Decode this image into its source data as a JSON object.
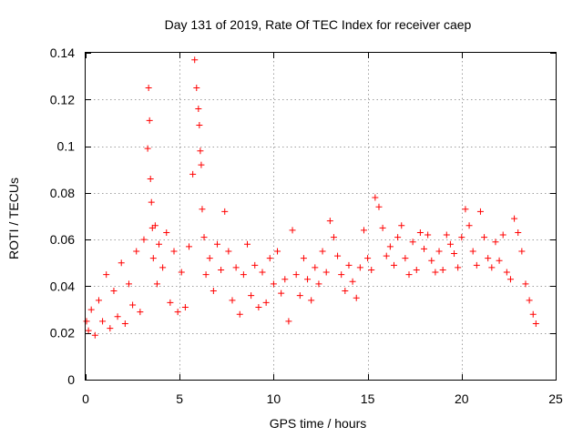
{
  "chart_data": {
    "type": "scatter",
    "title": "Day 131 of 2019, Rate Of TEC Index for receiver caep",
    "xlabel": "GPS time / hours",
    "ylabel": "ROTI / TECUs",
    "xlim": [
      0,
      25
    ],
    "ylim": [
      0,
      0.14
    ],
    "xticks": [
      0,
      5,
      10,
      15,
      20,
      25
    ],
    "xtick_labels": [
      "0",
      "5",
      "10",
      "15",
      "20",
      "25"
    ],
    "yticks": [
      0,
      0.02,
      0.04,
      0.06,
      0.08,
      0.1,
      0.12,
      0.14
    ],
    "ytick_labels": [
      "0",
      "0.02",
      "0.04",
      "0.06",
      "0.08",
      "0.1",
      "0.12",
      "0.14"
    ],
    "grid": true,
    "marker": "+",
    "marker_color": "#ff0000",
    "series": [
      {
        "name": "ROTI",
        "x": [
          0.05,
          0.15,
          0.3,
          0.5,
          0.7,
          0.9,
          1.1,
          1.3,
          1.5,
          1.7,
          1.9,
          2.1,
          2.3,
          2.5,
          2.7,
          2.9,
          3.1,
          3.3,
          3.35,
          3.4,
          3.45,
          3.5,
          3.55,
          3.6,
          3.7,
          3.8,
          3.9,
          4.1,
          4.3,
          4.5,
          4.7,
          4.9,
          5.1,
          5.3,
          5.5,
          5.7,
          5.8,
          5.9,
          6.0,
          6.05,
          6.1,
          6.15,
          6.2,
          6.3,
          6.4,
          6.6,
          6.8,
          7.0,
          7.2,
          7.4,
          7.6,
          7.8,
          8.0,
          8.2,
          8.4,
          8.6,
          8.8,
          9.0,
          9.2,
          9.4,
          9.6,
          9.8,
          10.0,
          10.2,
          10.4,
          10.6,
          10.8,
          11.0,
          11.2,
          11.4,
          11.6,
          11.8,
          12.0,
          12.2,
          12.4,
          12.6,
          12.8,
          13.0,
          13.2,
          13.4,
          13.6,
          13.8,
          14.0,
          14.2,
          14.4,
          14.6,
          14.8,
          15.0,
          15.2,
          15.4,
          15.6,
          15.8,
          16.0,
          16.2,
          16.4,
          16.6,
          16.8,
          17.0,
          17.2,
          17.4,
          17.6,
          17.8,
          18.0,
          18.2,
          18.4,
          18.6,
          18.8,
          19.0,
          19.2,
          19.4,
          19.6,
          19.8,
          20.0,
          20.2,
          20.4,
          20.6,
          20.8,
          21.0,
          21.2,
          21.4,
          21.6,
          21.8,
          22.0,
          22.2,
          22.4,
          22.6,
          22.8,
          23.0,
          23.2,
          23.4,
          23.6,
          23.8,
          23.95
        ],
        "y": [
          0.025,
          0.021,
          0.03,
          0.019,
          0.034,
          0.025,
          0.045,
          0.022,
          0.038,
          0.027,
          0.05,
          0.024,
          0.041,
          0.032,
          0.055,
          0.029,
          0.06,
          0.099,
          0.125,
          0.111,
          0.086,
          0.076,
          0.065,
          0.052,
          0.066,
          0.041,
          0.058,
          0.048,
          0.063,
          0.033,
          0.055,
          0.029,
          0.046,
          0.031,
          0.057,
          0.088,
          0.137,
          0.125,
          0.116,
          0.109,
          0.098,
          0.092,
          0.073,
          0.061,
          0.045,
          0.052,
          0.038,
          0.058,
          0.047,
          0.072,
          0.055,
          0.034,
          0.048,
          0.028,
          0.045,
          0.058,
          0.036,
          0.049,
          0.031,
          0.046,
          0.033,
          0.052,
          0.041,
          0.055,
          0.037,
          0.043,
          0.025,
          0.064,
          0.045,
          0.036,
          0.052,
          0.043,
          0.034,
          0.048,
          0.041,
          0.055,
          0.046,
          0.068,
          0.061,
          0.053,
          0.045,
          0.038,
          0.049,
          0.042,
          0.035,
          0.048,
          0.064,
          0.052,
          0.047,
          0.078,
          0.074,
          0.065,
          0.053,
          0.057,
          0.049,
          0.061,
          0.066,
          0.052,
          0.045,
          0.059,
          0.047,
          0.063,
          0.056,
          0.062,
          0.051,
          0.046,
          0.055,
          0.047,
          0.062,
          0.058,
          0.054,
          0.048,
          0.061,
          0.073,
          0.066,
          0.055,
          0.049,
          0.072,
          0.061,
          0.052,
          0.048,
          0.059,
          0.051,
          0.062,
          0.046,
          0.043,
          0.069,
          0.063,
          0.055,
          0.041,
          0.034,
          0.028,
          0.024
        ]
      }
    ]
  }
}
